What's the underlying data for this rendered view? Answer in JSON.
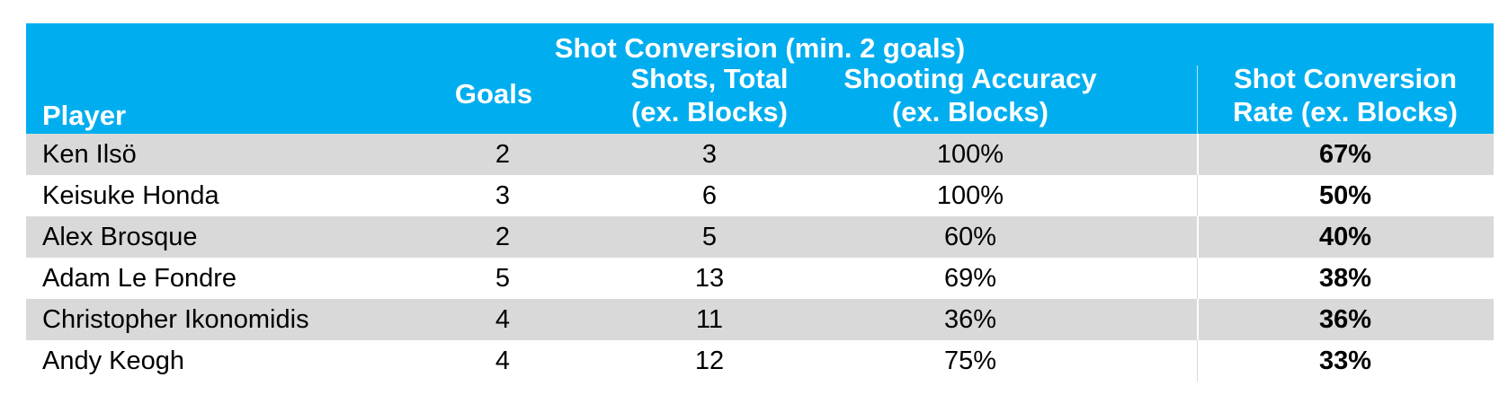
{
  "chart_data": {
    "type": "table",
    "title": "Shot Conversion (min. 2 goals)",
    "columns": [
      "Player",
      "Goals",
      "Shots, Total (ex. Blocks)",
      "Shooting Accuracy (ex. Blocks)",
      "Shot Conversion Rate (ex. Blocks)"
    ],
    "header_lines": {
      "player": "Player",
      "goals": "Goals",
      "shots_1": "Shots, Total",
      "shots_2": "(ex. Blocks)",
      "acc_1": "Shooting Accuracy",
      "acc_2": "(ex. Blocks)",
      "rate_1": "Shot Conversion",
      "rate_2": "Rate (ex. Blocks)"
    },
    "rows": [
      {
        "player": "Ken Ilsö",
        "goals": "2",
        "shots": "3",
        "accuracy": "100%",
        "conversion": "67%"
      },
      {
        "player": "Keisuke Honda",
        "goals": "3",
        "shots": "6",
        "accuracy": "100%",
        "conversion": "50%"
      },
      {
        "player": "Alex Brosque",
        "goals": "2",
        "shots": "5",
        "accuracy": "60%",
        "conversion": "40%"
      },
      {
        "player": "Adam Le Fondre",
        "goals": "5",
        "shots": "13",
        "accuracy": "69%",
        "conversion": "38%"
      },
      {
        "player": "Christopher Ikonomidis",
        "goals": "4",
        "shots": "11",
        "accuracy": "36%",
        "conversion": "36%"
      },
      {
        "player": "Andy Keogh",
        "goals": "4",
        "shots": "12",
        "accuracy": "75%",
        "conversion": "33%"
      }
    ],
    "colors": {
      "header": "#00aeef",
      "shade": "#d9d9d9"
    }
  }
}
